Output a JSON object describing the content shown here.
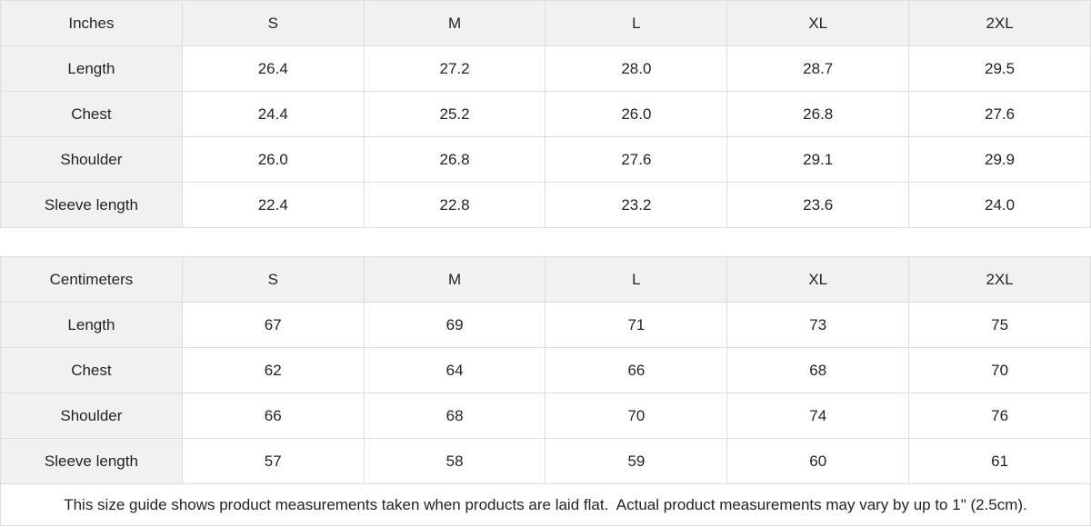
{
  "chart_data": [
    {
      "type": "table",
      "title": "Inches",
      "columns": [
        "Inches",
        "S",
        "M",
        "L",
        "XL",
        "2XL"
      ],
      "rows": [
        [
          "Length",
          "26.4",
          "27.2",
          "28.0",
          "28.7",
          "29.5"
        ],
        [
          "Chest",
          "24.4",
          "25.2",
          "26.0",
          "26.8",
          "27.6"
        ],
        [
          "Shoulder",
          "26.0",
          "26.8",
          "27.6",
          "29.1",
          "29.9"
        ],
        [
          "Sleeve length",
          "22.4",
          "22.8",
          "23.2",
          "23.6",
          "24.0"
        ]
      ]
    },
    {
      "type": "table",
      "title": "Centimeters",
      "columns": [
        "Centimeters",
        "S",
        "M",
        "L",
        "XL",
        "2XL"
      ],
      "rows": [
        [
          "Length",
          "67",
          "69",
          "71",
          "73",
          "75"
        ],
        [
          "Chest",
          "62",
          "64",
          "66",
          "68",
          "70"
        ],
        [
          "Shoulder",
          "66",
          "68",
          "70",
          "74",
          "76"
        ],
        [
          "Sleeve length",
          "57",
          "58",
          "59",
          "60",
          "61"
        ]
      ]
    }
  ],
  "footer": {
    "note": "This size guide shows product measurements taken when products are laid flat.  Actual product measurements may vary by up to 1\" (2.5cm)."
  },
  "colors": {
    "header_bg": "#f1f1f1",
    "label_column_bg": "#f1f1f1",
    "border": "#dddddd",
    "text": "#232323",
    "cell_bg": "#ffffff"
  }
}
